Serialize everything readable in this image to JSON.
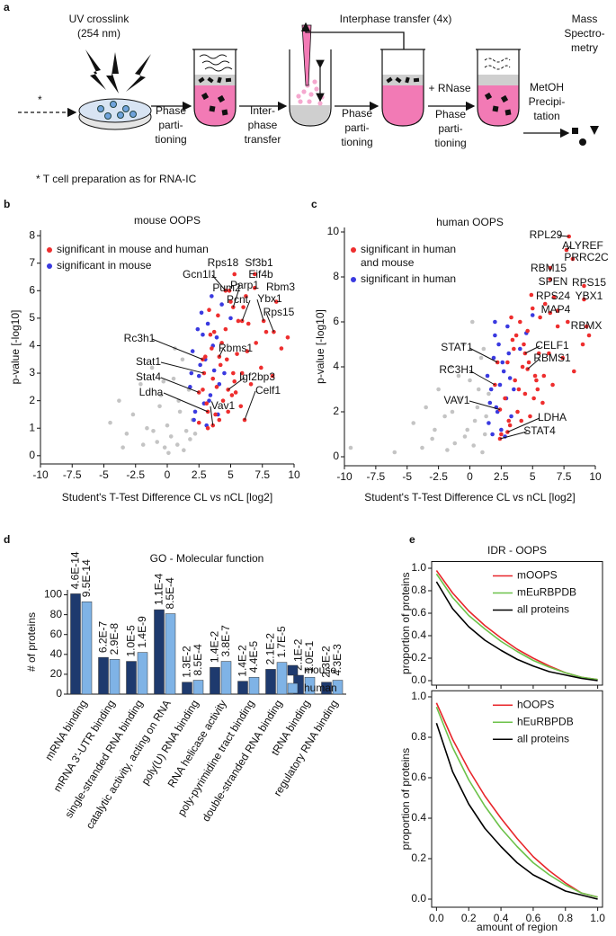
{
  "panels": [
    "a",
    "b",
    "c",
    "d",
    "e"
  ],
  "schematic": {
    "uv": [
      "UV crosslink",
      "(254 nm)"
    ],
    "asterisk": "*",
    "step1": [
      "Phase",
      "parti-",
      "tioning"
    ],
    "step2": [
      "Inter-",
      "phase",
      "transfer"
    ],
    "loop": "Interphase transfer (4x)",
    "step3": [
      "Phase",
      "parti-",
      "tioning"
    ],
    "rnase": "+ RNase",
    "step4": [
      "Phase",
      "parti-",
      "tioning"
    ],
    "step5": [
      "MetOH",
      "Precipi-",
      "tation"
    ],
    "ms": [
      "Mass",
      "Spectro-",
      "metry"
    ],
    "footnote": "* T cell preparation as for RNA-IC"
  },
  "chart_data": [
    {
      "type": "scatter",
      "title": "mouse OOPS",
      "xlabel": "Student's T-Test Difference CL vs nCL [log2]",
      "ylabel": "p-value [-log10]",
      "xlim": [
        -10,
        10
      ],
      "ylim": [
        -0.3,
        8.2
      ],
      "xticks": [
        -10,
        -7.5,
        -5,
        -2.5,
        0,
        2.5,
        5,
        7.5,
        10
      ],
      "yticks": [
        0,
        1,
        2,
        3,
        4,
        5,
        6,
        7,
        8
      ],
      "series": [
        {
          "color": "#c4c4c4",
          "x": [
            -4.5,
            -3.8,
            -3.2,
            -2.7,
            -2.1,
            -1.6,
            -1.2,
            -0.8,
            -0.5,
            -0.2,
            0,
            0.3,
            0.5,
            0.8,
            1,
            1.2,
            1.5,
            1.7,
            2,
            0.1,
            -0.6,
            -1.9,
            0.6,
            1.3,
            -1.1,
            -3.5,
            0.9,
            1.8,
            -0.3,
            2.2
          ],
          "y": [
            1.2,
            2.0,
            0.8,
            1.5,
            2.6,
            1.0,
            3.2,
            0.5,
            2.2,
            0.3,
            1.1,
            0.7,
            2.8,
            0.4,
            1.6,
            3.5,
            0.9,
            2.4,
            1.3,
            0.1,
            1.8,
            0.4,
            3.9,
            0.2,
            0.9,
            0.3,
            2.0,
            0.6,
            2.7,
            0.8
          ]
        },
        {
          "name": "significant in mouse",
          "color": "#3a3ae0",
          "x": [
            1.8,
            2.0,
            2.2,
            2.4,
            2.5,
            2.7,
            2.9,
            3.0,
            3.2,
            3.4,
            3.5,
            3.7,
            3.9,
            4.1,
            4.3,
            2.1,
            2.6,
            3.1,
            3.6,
            4.5,
            5.0,
            1.9,
            2.8,
            3.3,
            4.0
          ],
          "y": [
            2.5,
            3.8,
            1.6,
            4.6,
            2.9,
            5.2,
            1.9,
            3.5,
            4.8,
            2.2,
            5.8,
            3.1,
            4.3,
            2.6,
            5.5,
            1.3,
            3.3,
            1.1,
            4.0,
            3.0,
            5.0,
            3.0,
            4.4,
            2.0,
            1.5
          ]
        },
        {
          "name": "significant in mouse and human",
          "color": "#ee2e2e",
          "x": [
            2.5,
            2.8,
            3.0,
            3.2,
            3.4,
            3.6,
            3.8,
            4.0,
            4.2,
            4.4,
            4.6,
            4.8,
            5.0,
            5.2,
            5.4,
            5.6,
            5.8,
            6.0,
            6.3,
            6.6,
            7.0,
            7.4,
            7.8,
            8.3,
            9.0,
            9.5,
            3.1,
            3.5,
            3.9,
            4.3,
            4.7,
            5.1,
            5.5,
            5.9,
            6.4,
            3.3,
            3.7,
            4.1,
            4.9,
            5.3
          ],
          "y": [
            1.2,
            2.4,
            3.6,
            1.0,
            4.4,
            2.8,
            1.5,
            5.1,
            3.3,
            2.0,
            4.6,
            1.6,
            5.6,
            3.0,
            2.3,
            4.9,
            1.8,
            5.4,
            3.8,
            2.6,
            4.1,
            3.2,
            4.5,
            2.9,
            3.9,
            4.3,
            1.9,
            3.9,
            2.5,
            4.1,
            3.5,
            2.2,
            3.7,
            3.0,
            4.8,
            5.3,
            4.5,
            1.3,
            6.0,
            2.7
          ]
        }
      ],
      "legend_order": [
        2,
        1
      ],
      "annotations": [
        {
          "text": "Rps18",
          "x": 5.3,
          "y": 6.6
        },
        {
          "text": "Sf3b1",
          "x": 6.9,
          "y": 6.6
        },
        {
          "text": "Eif4b",
          "x": 6.9,
          "y": 6.1
        },
        {
          "text": "Parp1",
          "x": 6.2,
          "y": 5.8
        },
        {
          "text": "Gcn1l1",
          "x": 4.6,
          "y": 6.0
        },
        {
          "text": "Pum2",
          "x": 5.2,
          "y": 5.4
        },
        {
          "text": "Rbm3",
          "x": 8.6,
          "y": 5.6
        },
        {
          "text": "Pcnt",
          "x": 5.9,
          "y": 4.9
        },
        {
          "text": "Ybx1",
          "x": 7.6,
          "y": 4.9
        },
        {
          "text": "Rps15",
          "x": 8.4,
          "y": 4.5
        },
        {
          "text": "Rc3h1",
          "x": 2.8,
          "y": 3.5
        },
        {
          "text": "Rbms1",
          "x": 4.1,
          "y": 3.6
        },
        {
          "text": "Stat1",
          "x": 2.9,
          "y": 3.0
        },
        {
          "text": "Stat4",
          "x": 2.5,
          "y": 2.3
        },
        {
          "text": "Igf2bp3",
          "x": 4.8,
          "y": 2.4
        },
        {
          "text": "Ldha",
          "x": 3.2,
          "y": 1.6
        },
        {
          "text": "Celf1",
          "x": 6.1,
          "y": 1.3
        },
        {
          "text": "Vav1",
          "x": 3.6,
          "y": 1.1
        }
      ]
    },
    {
      "type": "scatter",
      "title": "human OOPS",
      "xlabel": "Student's T-Test Difference CL vs nCL [log2]",
      "ylabel": "p-value [-log10]",
      "xlim": [
        -10,
        10
      ],
      "ylim": [
        -0.4,
        10.2
      ],
      "xticks": [
        -10,
        -7.5,
        -5,
        -2.5,
        0,
        2.5,
        5,
        7.5,
        10
      ],
      "yticks": [
        0,
        2,
        4,
        6,
        8,
        10
      ],
      "series": [
        {
          "color": "#c4c4c4",
          "x": [
            -9.5,
            -6,
            -4.5,
            -3.5,
            -3,
            -2.5,
            -2,
            -1.5,
            -1.2,
            -0.8,
            -0.5,
            -0.2,
            0,
            0.3,
            0.6,
            0.9,
            1.2,
            1.5,
            -1.8,
            -0.9,
            0.4,
            1.0,
            -2.8,
            -0.4,
            0.7,
            1.3,
            -1.4,
            0.2,
            -3.8,
            1.1
          ],
          "y": [
            0.4,
            0.2,
            1.5,
            2.2,
            0.8,
            3.0,
            1.8,
            4.0,
            0.6,
            2.6,
            5.0,
            1.2,
            3.4,
            0.5,
            2.2,
            4.4,
            1.0,
            2.8,
            0.3,
            3.6,
            1.6,
            0.2,
            1.2,
            0.9,
            3.0,
            1.8,
            2.0,
            6.0,
            0.4,
            4.8
          ]
        },
        {
          "name": "significant in human",
          "color": "#3a3ae0",
          "x": [
            1.5,
            1.7,
            1.9,
            2.1,
            2.3,
            2.5,
            2.7,
            2.9,
            3.1,
            3.3,
            1.6,
            2.0,
            2.4,
            2.8,
            3.2,
            1.8,
            2.2,
            2.6,
            3.0,
            3.5,
            4.0,
            4.5,
            5.0,
            1.4,
            2.0
          ],
          "y": [
            1.5,
            3.0,
            4.4,
            2.2,
            5.0,
            1.2,
            3.8,
            2.6,
            4.6,
            1.8,
            2.4,
            5.4,
            3.2,
            0.9,
            3.5,
            1.0,
            2.0,
            4.2,
            5.8,
            3.0,
            4.8,
            5.5,
            6.3,
            3.6,
            6.0
          ]
        },
        {
          "name": "significant in human and mouse",
          "color": "#ee2e2e",
          "x": [
            2.5,
            2.8,
            3.0,
            3.2,
            3.4,
            3.6,
            3.8,
            4.0,
            4.2,
            4.4,
            4.6,
            4.8,
            5.0,
            5.2,
            5.4,
            5.6,
            5.8,
            6.0,
            6.3,
            6.6,
            7.0,
            7.4,
            7.8,
            8.3,
            9.0,
            9.5,
            3.1,
            3.5,
            3.9,
            4.3,
            4.7,
            5.1,
            5.5,
            5.9,
            6.4,
            3.3,
            3.7,
            4.1,
            4.9,
            5.3
          ],
          "y": [
            1.0,
            2.6,
            4.2,
            1.4,
            5.2,
            3.4,
            2.0,
            6.0,
            4.0,
            2.8,
            5.6,
            1.8,
            6.6,
            3.6,
            3.0,
            6.2,
            2.4,
            6.8,
            4.6,
            3.2,
            5.8,
            4.4,
            6.0,
            3.8,
            5.0,
            5.4,
            1.6,
            4.8,
            3.0,
            5.0,
            4.2,
            2.6,
            4.6,
            3.6,
            6.4,
            6.2,
            5.4,
            1.6,
            7.2,
            3.4
          ]
        }
      ],
      "legend_order": [
        2,
        1
      ],
      "annotations": [
        {
          "text": "RPL29",
          "x": 7.9,
          "y": 9.8
        },
        {
          "text": "ALYREF",
          "x": 7.7,
          "y": 9.2
        },
        {
          "text": "PRRC2C",
          "x": 8.2,
          "y": 8.8
        },
        {
          "text": "RBM15",
          "x": 6.4,
          "y": 8.4
        },
        {
          "text": "SPEN",
          "x": 6.4,
          "y": 7.9
        },
        {
          "text": "RPS15",
          "x": 9.1,
          "y": 7.6
        },
        {
          "text": "RPS24",
          "x": 6.7,
          "y": 7.1
        },
        {
          "text": "YBX1",
          "x": 9.1,
          "y": 7.0
        },
        {
          "text": "MAP4",
          "x": 7.0,
          "y": 6.5
        },
        {
          "text": "RBMX",
          "x": 9.3,
          "y": 5.8
        },
        {
          "text": "STAT1",
          "x": 2.2,
          "y": 4.2
        },
        {
          "text": "CELF1",
          "x": 4.4,
          "y": 4.6
        },
        {
          "text": "RBMS1",
          "x": 4.6,
          "y": 3.9
        },
        {
          "text": "RC3H1",
          "x": 2.0,
          "y": 3.2
        },
        {
          "text": "VAV1",
          "x": 2.4,
          "y": 2.1
        },
        {
          "text": "LDHA",
          "x": 3.0,
          "y": 1.1
        },
        {
          "text": "STAT4",
          "x": 2.4,
          "y": 0.8
        }
      ]
    },
    {
      "type": "bar",
      "title": "GO - Molecular function",
      "ylabel": "# of proteins",
      "ylim": [
        0,
        105
      ],
      "yticks": [
        0,
        20,
        40,
        60,
        80,
        100
      ],
      "categories": [
        "mRNA binding",
        "mRNA 3'-UTR binding",
        "single-stranded RNA binding",
        "catalytic activity, acting on RNA",
        "poly(U) RNA binding",
        "RNA helicase activity",
        "poly-pyrimidine tract binding",
        "double-stranded RNA binding",
        "tRNA binding",
        "regulatory RNA binding"
      ],
      "series": [
        {
          "name": "mouse",
          "color": "#1e3a6e",
          "values": [
            101,
            37,
            33,
            85,
            12,
            27,
            13,
            25,
            19,
            12
          ],
          "p_values": [
            "4.6E-14",
            "6.2E-7",
            "1.0E-5",
            "1.1E-4",
            "1.3E-2",
            "1.4E-2",
            "1.4E-2",
            "2.1E-2",
            "2.1E-2",
            "2.3E-2"
          ]
        },
        {
          "name": "human",
          "color": "#7fb3e6",
          "values": [
            93,
            35,
            42,
            81,
            14,
            33,
            17,
            32,
            17,
            14
          ],
          "p_values": [
            "9.5E-14",
            "2.9E-8",
            "1.4E-9",
            "8.5E-4",
            "8.5E-4",
            "3.8E-7",
            "4.4E-5",
            "1.7E-5",
            "1.0E-1",
            "4.3E-3"
          ]
        }
      ]
    },
    {
      "type": "line",
      "title": "IDR - OOPS",
      "ylabel": "proportion of proteins",
      "xlim": [
        -0.03,
        1.03
      ],
      "ylim": [
        -0.04,
        1.06
      ],
      "yticks": [
        {
          "value": 0,
          "label": "0.0"
        },
        {
          "value": 0.2,
          "label": "0.2"
        },
        {
          "value": 0.4,
          "label": "0.4"
        },
        {
          "value": 0.6,
          "label": "0.6"
        },
        {
          "value": 0.8,
          "label": "0.8"
        },
        {
          "value": 1,
          "label": "1.0"
        }
      ],
      "x": [
        0,
        0.1,
        0.2,
        0.3,
        0.4,
        0.5,
        0.6,
        0.7,
        0.8,
        0.9,
        1.0
      ],
      "series": [
        {
          "name": "mOOPS",
          "color": "#e8262b",
          "values": [
            0.98,
            0.78,
            0.62,
            0.49,
            0.38,
            0.28,
            0.2,
            0.13,
            0.07,
            0.03,
            0.01
          ]
        },
        {
          "name": "mEuRBPDB",
          "color": "#6cc24a",
          "values": [
            0.95,
            0.74,
            0.58,
            0.46,
            0.35,
            0.26,
            0.18,
            0.12,
            0.07,
            0.03,
            0.01
          ]
        },
        {
          "name": "all proteins",
          "color": "#000000",
          "values": [
            0.88,
            0.64,
            0.48,
            0.36,
            0.27,
            0.19,
            0.13,
            0.08,
            0.05,
            0.02,
            0.0
          ]
        }
      ]
    },
    {
      "type": "line",
      "xlabel": "amount of region",
      "ylabel": "proportion of proteins",
      "xlim": [
        -0.03,
        1.03
      ],
      "ylim": [
        -0.04,
        1.03
      ],
      "xticks": [
        {
          "value": 0,
          "label": "0.0"
        },
        {
          "value": 0.2,
          "label": "0.2"
        },
        {
          "value": 0.4,
          "label": "0.4"
        },
        {
          "value": 0.6,
          "label": "0.6"
        },
        {
          "value": 0.8,
          "label": "0.8"
        },
        {
          "value": 1,
          "label": "1.0"
        }
      ],
      "yticks": [
        {
          "value": 0,
          "label": "0.0"
        },
        {
          "value": 0.2,
          "label": "0.2"
        },
        {
          "value": 0.4,
          "label": "0.4"
        },
        {
          "value": 0.6,
          "label": "0.6"
        },
        {
          "value": 0.8,
          "label": "0.8"
        },
        {
          "value": 1,
          "label": "1.0"
        }
      ],
      "x": [
        0,
        0.1,
        0.2,
        0.3,
        0.4,
        0.5,
        0.6,
        0.7,
        0.8,
        0.9,
        1.0
      ],
      "series": [
        {
          "name": "hOOPS",
          "color": "#e8262b",
          "values": [
            0.97,
            0.79,
            0.64,
            0.51,
            0.4,
            0.3,
            0.21,
            0.14,
            0.08,
            0.03,
            0.01
          ]
        },
        {
          "name": "hEuRBPDB",
          "color": "#6cc24a",
          "values": [
            0.95,
            0.75,
            0.59,
            0.46,
            0.35,
            0.26,
            0.18,
            0.12,
            0.07,
            0.03,
            0.01
          ]
        },
        {
          "name": "all proteins",
          "color": "#000000",
          "values": [
            0.87,
            0.63,
            0.47,
            0.35,
            0.26,
            0.18,
            0.12,
            0.08,
            0.04,
            0.02,
            0.0
          ]
        }
      ]
    }
  ]
}
